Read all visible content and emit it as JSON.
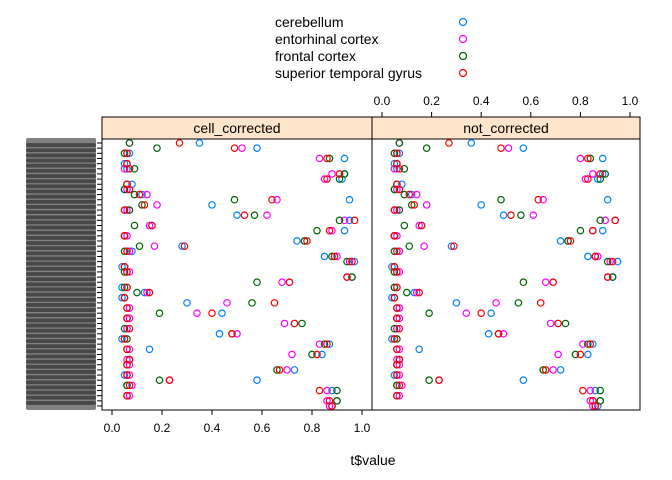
{
  "chart_data": {
    "type": "scatter",
    "title": "",
    "xlabel": "t$value",
    "ylabel": "",
    "xlim": [
      0,
      1
    ],
    "x_ticks": [
      "0.0",
      "0.2",
      "0.4",
      "0.6",
      "0.8",
      "1.0"
    ],
    "grid": false,
    "legend_position": "top",
    "legend": [
      {
        "name": "cerebellum",
        "color": "#0080ff"
      },
      {
        "name": "entorhinal cortex",
        "color": "#ff00ff"
      },
      {
        "name": "frontal cortex",
        "color": "#006400"
      },
      {
        "name": "superior temporal gyrus",
        "color": "#ff0000"
      }
    ],
    "panels": [
      {
        "name": "cell_corrected",
        "series": [
          {
            "name": "cerebellum",
            "values": [
              0.35,
              0.58,
              0.07,
              0.93,
              0.05,
              0.06,
              0.93,
              0.92,
              0.08,
              0.05,
              0.12,
              0.95,
              0.4,
              0.05,
              0.5,
              0.95,
              0.16,
              0.93,
              0.05,
              0.74,
              0.28,
              0.08,
              0.85,
              0.97,
              0.04,
              0.06,
              0.96,
              0.71,
              0.04,
              0.13,
              0.04,
              0.3,
              0.07,
              0.44,
              0.06,
              0.73,
              0.06,
              0.43,
              0.04,
              0.87,
              0.15,
              0.84,
              0.07,
              0.06,
              0.73,
              0.05,
              0.58,
              0.06,
              0.88,
              0.06,
              0.9,
              0.88
            ]
          },
          {
            "name": "entorhinal cortex",
            "values": [
              0.07,
              0.52,
              0.06,
              0.83,
              0.06,
              0.05,
              0.88,
              0.85,
              0.06,
              0.06,
              0.14,
              0.66,
              0.18,
              0.06,
              0.62,
              0.93,
              0.15,
              0.88,
              0.06,
              0.77,
              0.17,
              0.07,
              0.9,
              0.95,
              0.05,
              0.07,
              0.94,
              0.68,
              0.06,
              0.14,
              0.05,
              0.46,
              0.07,
              0.34,
              0.07,
              0.69,
              0.06,
              0.5,
              0.05,
              0.83,
              0.07,
              0.72,
              0.06,
              0.07,
              0.7,
              0.07,
              0.23,
              0.08,
              0.86,
              0.07,
              0.86,
              0.87
            ]
          },
          {
            "name": "frontal cortex",
            "values": [
              0.07,
              0.18,
              0.05,
              0.87,
              0.06,
              0.09,
              0.93,
              0.91,
              0.06,
              0.05,
              0.09,
              0.49,
              0.12,
              0.07,
              0.57,
              0.91,
              0.09,
              0.82,
              0.05,
              0.77,
              0.11,
              0.05,
              0.88,
              0.94,
              0.05,
              0.05,
              0.96,
              0.58,
              0.05,
              0.1,
              0.05,
              0.56,
              0.06,
              0.19,
              0.06,
              0.76,
              0.05,
              0.48,
              0.06,
              0.85,
              0.06,
              0.8,
              0.07,
              0.06,
              0.66,
              0.06,
              0.19,
              0.06,
              0.9,
              0.06,
              0.9,
              0.88
            ]
          },
          {
            "name": "superior temporal gyrus",
            "values": [
              0.27,
              0.49,
              0.06,
              0.86,
              0.06,
              0.07,
              0.91,
              0.86,
              0.06,
              0.07,
              0.11,
              0.64,
              0.13,
              0.05,
              0.53,
              0.97,
              0.16,
              0.87,
              0.05,
              0.78,
              0.29,
              0.06,
              0.89,
              0.96,
              0.05,
              0.06,
              0.94,
              0.71,
              0.06,
              0.15,
              0.05,
              0.65,
              0.06,
              0.4,
              0.06,
              0.73,
              0.07,
              0.48,
              0.05,
              0.86,
              0.06,
              0.82,
              0.07,
              0.06,
              0.67,
              0.06,
              0.23,
              0.07,
              0.83,
              0.06,
              0.87,
              0.88
            ]
          }
        ]
      },
      {
        "name": "not_corrected",
        "series": [
          {
            "name": "cerebellum",
            "values": [
              0.36,
              0.57,
              0.07,
              0.89,
              0.05,
              0.06,
              0.89,
              0.87,
              0.08,
              0.05,
              0.12,
              0.91,
              0.4,
              0.05,
              0.49,
              0.94,
              0.16,
              0.89,
              0.05,
              0.72,
              0.28,
              0.07,
              0.83,
              0.95,
              0.04,
              0.06,
              0.93,
              0.69,
              0.05,
              0.13,
              0.04,
              0.3,
              0.07,
              0.44,
              0.06,
              0.71,
              0.06,
              0.43,
              0.04,
              0.85,
              0.15,
              0.83,
              0.07,
              0.06,
              0.72,
              0.05,
              0.57,
              0.06,
              0.86,
              0.06,
              0.88,
              0.87
            ]
          },
          {
            "name": "entorhinal cortex",
            "values": [
              0.07,
              0.51,
              0.06,
              0.8,
              0.06,
              0.05,
              0.85,
              0.82,
              0.06,
              0.06,
              0.14,
              0.65,
              0.18,
              0.06,
              0.61,
              0.9,
              0.15,
              0.85,
              0.06,
              0.75,
              0.17,
              0.07,
              0.87,
              0.92,
              0.05,
              0.07,
              0.91,
              0.66,
              0.06,
              0.14,
              0.05,
              0.46,
              0.07,
              0.34,
              0.07,
              0.68,
              0.06,
              0.49,
              0.05,
              0.81,
              0.07,
              0.71,
              0.06,
              0.07,
              0.69,
              0.07,
              0.23,
              0.08,
              0.84,
              0.07,
              0.84,
              0.85
            ]
          },
          {
            "name": "frontal cortex",
            "values": [
              0.07,
              0.18,
              0.05,
              0.84,
              0.06,
              0.09,
              0.9,
              0.88,
              0.06,
              0.05,
              0.09,
              0.48,
              0.12,
              0.07,
              0.56,
              0.88,
              0.09,
              0.8,
              0.05,
              0.75,
              0.11,
              0.05,
              0.86,
              0.91,
              0.05,
              0.05,
              0.93,
              0.57,
              0.05,
              0.1,
              0.05,
              0.55,
              0.06,
              0.19,
              0.06,
              0.74,
              0.05,
              0.47,
              0.06,
              0.83,
              0.06,
              0.78,
              0.07,
              0.06,
              0.65,
              0.06,
              0.19,
              0.06,
              0.88,
              0.06,
              0.88,
              0.86
            ]
          },
          {
            "name": "superior temporal gyrus",
            "values": [
              0.27,
              0.48,
              0.06,
              0.83,
              0.06,
              0.07,
              0.88,
              0.83,
              0.06,
              0.07,
              0.11,
              0.63,
              0.13,
              0.05,
              0.52,
              0.94,
              0.16,
              0.85,
              0.05,
              0.76,
              0.29,
              0.06,
              0.86,
              0.93,
              0.05,
              0.06,
              0.91,
              0.69,
              0.06,
              0.15,
              0.05,
              0.64,
              0.06,
              0.4,
              0.06,
              0.71,
              0.07,
              0.47,
              0.05,
              0.84,
              0.06,
              0.8,
              0.07,
              0.06,
              0.66,
              0.06,
              0.23,
              0.07,
              0.81,
              0.06,
              0.85,
              0.86
            ]
          }
        ]
      }
    ]
  }
}
